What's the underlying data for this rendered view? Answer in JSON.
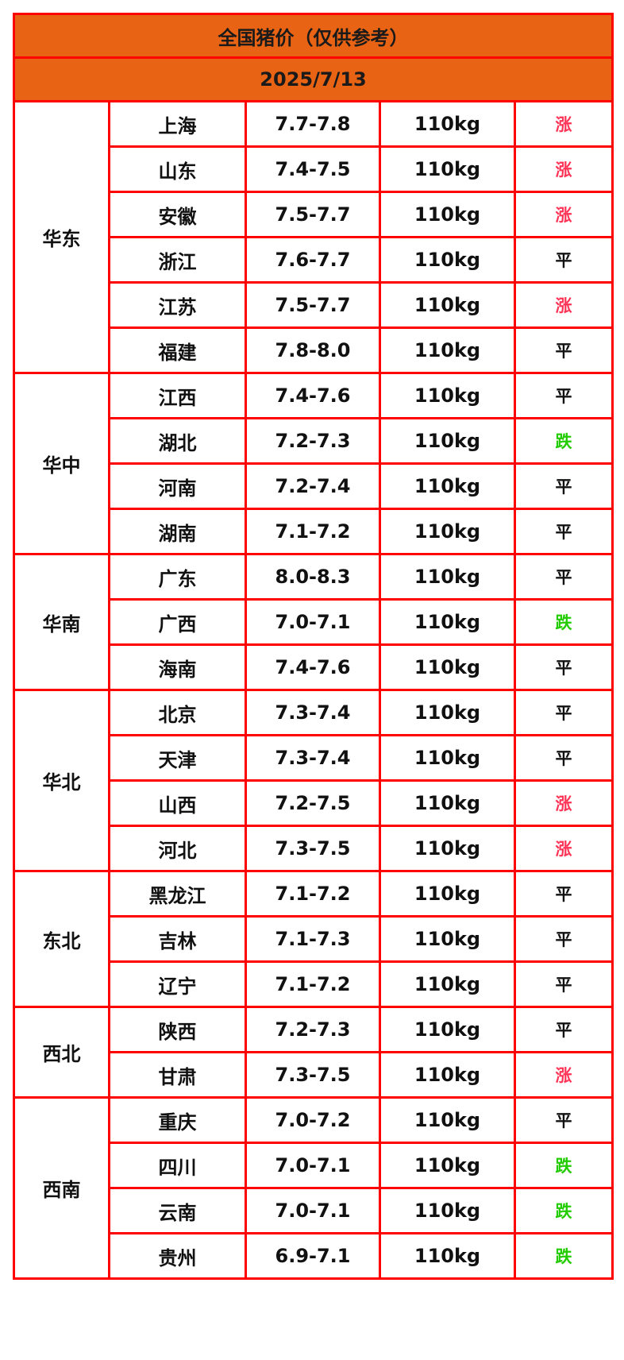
{
  "title": "全国猪价（仅供参考）",
  "date": "2025/7/13",
  "colors": {
    "header_bg": "#e96314",
    "border": "#ff0000",
    "up": "#ff3355",
    "down": "#22cc00",
    "flat": "#111111"
  },
  "regions": [
    {
      "name": "华东",
      "rows": [
        {
          "province": "上海",
          "price": "7.7-7.8",
          "weight": "110kg",
          "trend": "涨"
        },
        {
          "province": "山东",
          "price": "7.4-7.5",
          "weight": "110kg",
          "trend": "涨"
        },
        {
          "province": "安徽",
          "price": "7.5-7.7",
          "weight": "110kg",
          "trend": "涨"
        },
        {
          "province": "浙江",
          "price": "7.6-7.7",
          "weight": "110kg",
          "trend": "平"
        },
        {
          "province": "江苏",
          "price": "7.5-7.7",
          "weight": "110kg",
          "trend": "涨"
        },
        {
          "province": "福建",
          "price": "7.8-8.0",
          "weight": "110kg",
          "trend": "平"
        }
      ]
    },
    {
      "name": "华中",
      "rows": [
        {
          "province": "江西",
          "price": "7.4-7.6",
          "weight": "110kg",
          "trend": "平"
        },
        {
          "province": "湖北",
          "price": "7.2-7.3",
          "weight": "110kg",
          "trend": "跌"
        },
        {
          "province": "河南",
          "price": "7.2-7.4",
          "weight": "110kg",
          "trend": "平"
        },
        {
          "province": "湖南",
          "price": "7.1-7.2",
          "weight": "110kg",
          "trend": "平"
        }
      ]
    },
    {
      "name": "华南",
      "rows": [
        {
          "province": "广东",
          "price": "8.0-8.3",
          "weight": "110kg",
          "trend": "平"
        },
        {
          "province": "广西",
          "price": "7.0-7.1",
          "weight": "110kg",
          "trend": "跌"
        },
        {
          "province": "海南",
          "price": "7.4-7.6",
          "weight": "110kg",
          "trend": "平"
        }
      ]
    },
    {
      "name": "华北",
      "rows": [
        {
          "province": "北京",
          "price": "7.3-7.4",
          "weight": "110kg",
          "trend": "平"
        },
        {
          "province": "天津",
          "price": "7.3-7.4",
          "weight": "110kg",
          "trend": "平"
        },
        {
          "province": "山西",
          "price": "7.2-7.5",
          "weight": "110kg",
          "trend": "涨"
        },
        {
          "province": "河北",
          "price": "7.3-7.5",
          "weight": "110kg",
          "trend": "涨"
        }
      ]
    },
    {
      "name": "东北",
      "rows": [
        {
          "province": "黑龙江",
          "price": "7.1-7.2",
          "weight": "110kg",
          "trend": "平"
        },
        {
          "province": "吉林",
          "price": "7.1-7.3",
          "weight": "110kg",
          "trend": "平"
        },
        {
          "province": "辽宁",
          "price": "7.1-7.2",
          "weight": "110kg",
          "trend": "平"
        }
      ]
    },
    {
      "name": "西北",
      "rows": [
        {
          "province": "陕西",
          "price": "7.2-7.3",
          "weight": "110kg",
          "trend": "平"
        },
        {
          "province": "甘肃",
          "price": "7.3-7.5",
          "weight": "110kg",
          "trend": "涨"
        }
      ]
    },
    {
      "name": "西南",
      "rows": [
        {
          "province": "重庆",
          "price": "7.0-7.2",
          "weight": "110kg",
          "trend": "平"
        },
        {
          "province": "四川",
          "price": "7.0-7.1",
          "weight": "110kg",
          "trend": "跌"
        },
        {
          "province": "云南",
          "price": "7.0-7.1",
          "weight": "110kg",
          "trend": "跌"
        },
        {
          "province": "贵州",
          "price": "6.9-7.1",
          "weight": "110kg",
          "trend": "跌"
        }
      ]
    }
  ]
}
